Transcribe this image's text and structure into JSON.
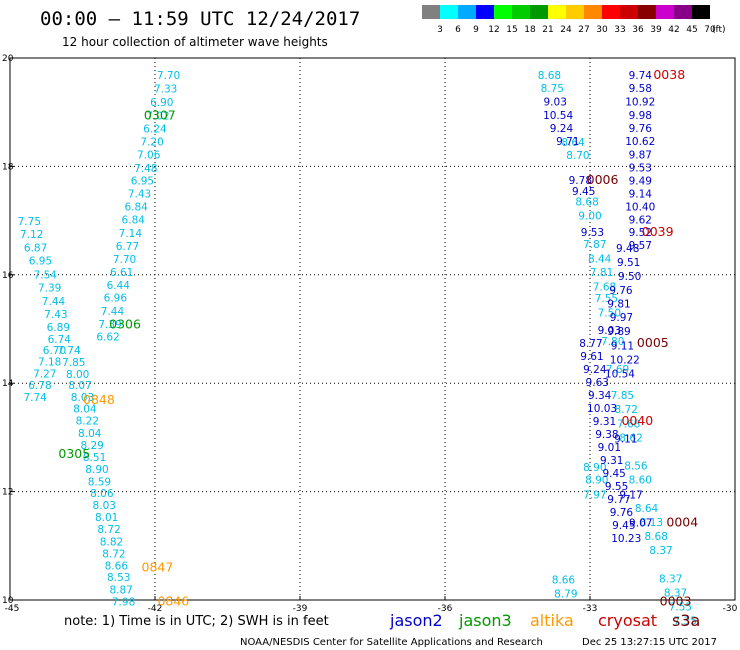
{
  "title": "00:00 – 11:59 UTC 12/24/2017",
  "subtitle": "12 hour collection of altimeter wave heights",
  "note": "note:  1) Time is in UTC;  2) SWH is in feet",
  "credit": "NOAA/NESDIS Center for Satellite Applications and Research",
  "timestamp": "Dec 25 13:27:15 UTC 2017",
  "colorbar": {
    "unit": "(ft)",
    "labels": [
      "3",
      "6",
      "9",
      "12",
      "15",
      "18",
      "21",
      "24",
      "27",
      "30",
      "33",
      "36",
      "39",
      "42",
      "45",
      "70"
    ],
    "colors": [
      "#808080",
      "#00ffff",
      "#00aaff",
      "#0000ff",
      "#00ff00",
      "#00cc00",
      "#009900",
      "#ffff00",
      "#ffcc00",
      "#ff8800",
      "#ff0000",
      "#cc0000",
      "#880000",
      "#cc00cc",
      "#880088",
      "#000000"
    ]
  },
  "satellites": [
    {
      "name": "jason2",
      "color": "#0000cc"
    },
    {
      "name": "jason3",
      "color": "#009900"
    },
    {
      "name": "altika",
      "color": "#ff9900"
    },
    {
      "name": "cryosat",
      "color": "#cc0000"
    },
    {
      "name": "s3a",
      "color": "#770000"
    }
  ],
  "chart_data": {
    "type": "scatter",
    "xlim": [
      -45,
      -30
    ],
    "ylim": [
      10,
      20
    ],
    "x_ticks": [
      "-45",
      "-42",
      "-39",
      "-36",
      "-33",
      "-30"
    ],
    "y_ticks": [
      "10",
      "12",
      "14",
      "16",
      "18",
      "20"
    ],
    "grid": true,
    "groups": [
      {
        "color": "#00bfe6",
        "points": [
          [
            -41.72,
            19.69,
            "7.70"
          ],
          [
            -41.78,
            19.44,
            "7.33"
          ],
          [
            -41.86,
            19.19,
            "6.90"
          ],
          [
            -41.94,
            18.94,
            "7.02"
          ],
          [
            -42.0,
            18.7,
            "6.24"
          ],
          [
            -42.06,
            18.46,
            "7.20"
          ],
          [
            -42.13,
            18.22,
            "7.06"
          ],
          [
            -42.19,
            17.97,
            "7.48"
          ],
          [
            -42.26,
            17.74,
            "6.95"
          ],
          [
            -42.32,
            17.5,
            "7.43"
          ],
          [
            -42.39,
            17.26,
            "6.84"
          ],
          [
            -42.45,
            17.02,
            "6.84"
          ],
          [
            -42.51,
            16.77,
            "7.14"
          ],
          [
            -42.57,
            16.53,
            "6.77"
          ],
          [
            -42.63,
            16.29,
            "7.70"
          ],
          [
            -42.69,
            16.05,
            "6.61"
          ],
          [
            -42.76,
            15.81,
            "6.44"
          ],
          [
            -42.82,
            15.58,
            "6.96"
          ],
          [
            -42.88,
            15.33,
            "7.44"
          ],
          [
            -42.93,
            15.09,
            "7.39"
          ],
          [
            -42.97,
            14.86,
            "6.62"
          ]
        ]
      },
      {
        "color": "#00bfe6",
        "points": [
          [
            -44.6,
            16.99,
            "7.75"
          ],
          [
            -44.55,
            16.75,
            "7.12"
          ],
          [
            -44.47,
            16.5,
            "6.87"
          ],
          [
            -44.37,
            16.26,
            "6.95"
          ],
          [
            -44.27,
            16.01,
            "7.54"
          ],
          [
            -44.18,
            15.77,
            "7.39"
          ],
          [
            -44.1,
            15.52,
            "7.44"
          ],
          [
            -44.05,
            15.28,
            "7.43"
          ],
          [
            -44.0,
            15.04,
            "6.89"
          ],
          [
            -43.98,
            14.82,
            "6.74"
          ],
          [
            -44.08,
            14.61,
            "6.70"
          ],
          [
            -44.18,
            14.4,
            "7.18"
          ],
          [
            -44.28,
            14.18,
            "7.27"
          ],
          [
            -44.38,
            13.97,
            "6.78"
          ],
          [
            -44.48,
            13.75,
            "7.74"
          ],
          [
            -43.78,
            14.61,
            "7.74"
          ],
          [
            -43.68,
            14.39,
            "7.85"
          ],
          [
            -43.6,
            14.17,
            "8.00"
          ]
        ]
      },
      {
        "color": "#00bfe6",
        "points": [
          [
            -43.55,
            13.97,
            "8.07"
          ],
          [
            -43.5,
            13.75,
            "8.03"
          ],
          [
            -43.45,
            13.53,
            "8.04"
          ],
          [
            -43.4,
            13.31,
            "8.22"
          ],
          [
            -43.35,
            13.08,
            "8.04"
          ],
          [
            -43.3,
            12.86,
            "8.29"
          ],
          [
            -43.25,
            12.64,
            "8.51"
          ],
          [
            -43.2,
            12.42,
            "8.90"
          ],
          [
            -43.15,
            12.19,
            "8.59"
          ],
          [
            -43.1,
            11.97,
            "8.06"
          ],
          [
            -43.05,
            11.75,
            "8.03"
          ],
          [
            -43.0,
            11.53,
            "8.01"
          ],
          [
            -42.95,
            11.31,
            "8.72"
          ],
          [
            -42.9,
            11.08,
            "8.82"
          ],
          [
            -42.85,
            10.86,
            "8.72"
          ],
          [
            -42.8,
            10.64,
            "8.66"
          ],
          [
            -42.75,
            10.42,
            "8.53"
          ],
          [
            -42.7,
            10.19,
            "8.87"
          ],
          [
            -42.65,
            9.97,
            "7.98"
          ]
        ]
      },
      {
        "color": "#00bfe6",
        "points": [
          [
            -33.84,
            19.69,
            "8.68"
          ],
          [
            -33.78,
            19.45,
            "8.75"
          ],
          [
            -33.06,
            17.35,
            "8.68"
          ],
          [
            -33.0,
            17.09,
            "9.00"
          ],
          [
            -32.9,
            16.57,
            "7.87"
          ],
          [
            -32.8,
            16.3,
            "8.44"
          ],
          [
            -32.76,
            16.05,
            "7.81"
          ],
          [
            -32.7,
            15.78,
            "7.68"
          ],
          [
            -32.66,
            15.57,
            "7.55"
          ],
          [
            -32.6,
            15.3,
            "7.50"
          ],
          [
            -32.53,
            14.78,
            "7.80"
          ],
          [
            -32.43,
            14.26,
            "7.69"
          ],
          [
            -32.33,
            13.78,
            "7.85"
          ],
          [
            -32.25,
            13.52,
            "8.72"
          ],
          [
            -32.2,
            13.26,
            "7.68"
          ],
          [
            -32.15,
            13.0,
            "8.62"
          ],
          [
            -32.05,
            12.48,
            "8.56"
          ],
          [
            -31.96,
            12.22,
            "8.60"
          ],
          [
            -31.83,
            11.7,
            "8.64"
          ],
          [
            -31.73,
            11.44,
            "8.13"
          ],
          [
            -31.63,
            11.18,
            "8.68"
          ],
          [
            -31.53,
            10.92,
            "8.37"
          ],
          [
            -31.33,
            10.4,
            "8.37"
          ],
          [
            -31.23,
            10.14,
            "8.37"
          ],
          [
            -31.13,
            9.88,
            "7.55"
          ],
          [
            -31.03,
            9.62,
            "7.35"
          ],
          [
            -33.35,
            18.45,
            "8.64"
          ],
          [
            -33.25,
            18.21,
            "8.70"
          ],
          [
            -33.55,
            10.38,
            "8.66"
          ],
          [
            -33.5,
            10.12,
            "8.79"
          ],
          [
            -32.9,
            11.95,
            "7.97"
          ],
          [
            -32.86,
            12.22,
            "8.90"
          ],
          [
            -32.9,
            12.45,
            "8.90"
          ]
        ]
      },
      {
        "color": "#0000cc",
        "points": [
          [
            -33.72,
            19.2,
            "9.03"
          ],
          [
            -33.66,
            18.95,
            "10.54"
          ],
          [
            -33.59,
            18.71,
            "9.24"
          ],
          [
            -33.46,
            18.47,
            "9.71"
          ],
          [
            -33.2,
            17.75,
            "9.78"
          ],
          [
            -33.13,
            17.55,
            "9.45"
          ],
          [
            -32.95,
            16.79,
            "9.53"
          ],
          [
            -32.22,
            16.49,
            "9.48"
          ],
          [
            -32.2,
            16.24,
            "9.51"
          ],
          [
            -32.18,
            15.98,
            "9.50"
          ],
          [
            -32.36,
            15.72,
            "9.76"
          ],
          [
            -32.4,
            15.47,
            "9.81"
          ],
          [
            -32.35,
            15.22,
            "9.97"
          ],
          [
            -32.4,
            14.96,
            "9.89"
          ],
          [
            -32.33,
            14.7,
            "9.11"
          ],
          [
            -32.28,
            14.44,
            "10.22"
          ],
          [
            -32.38,
            14.18,
            "10.54"
          ],
          [
            -32.98,
            14.74,
            "8.77"
          ],
          [
            -32.96,
            14.5,
            "9.61"
          ],
          [
            -32.9,
            14.26,
            "9.24"
          ],
          [
            -32.85,
            14.02,
            "9.63"
          ],
          [
            -32.8,
            13.78,
            "9.34"
          ],
          [
            -32.75,
            13.54,
            "10.03"
          ],
          [
            -32.7,
            13.3,
            "9.31"
          ],
          [
            -32.65,
            13.06,
            "9.38"
          ],
          [
            -32.6,
            12.82,
            "9.01"
          ],
          [
            -32.55,
            12.58,
            "9.31"
          ],
          [
            -32.5,
            12.34,
            "9.45"
          ],
          [
            -32.45,
            12.1,
            "9.55"
          ],
          [
            -32.4,
            11.86,
            "9.77"
          ],
          [
            -32.35,
            11.62,
            "9.76"
          ],
          [
            -32.3,
            11.38,
            "9.45"
          ],
          [
            -32.25,
            11.14,
            "10.23"
          ],
          [
            -32.6,
            14.98,
            "9.03"
          ],
          [
            -31.96,
            19.69,
            "9.74"
          ],
          [
            -31.96,
            19.45,
            "9.58"
          ],
          [
            -31.96,
            19.2,
            "10.92"
          ],
          [
            -31.96,
            18.95,
            "9.98"
          ],
          [
            -31.96,
            18.71,
            "9.76"
          ],
          [
            -31.96,
            18.47,
            "10.62"
          ],
          [
            -31.96,
            18.22,
            "9.87"
          ],
          [
            -31.96,
            17.98,
            "9.53"
          ],
          [
            -31.96,
            17.74,
            "9.49"
          ],
          [
            -31.96,
            17.5,
            "9.14"
          ],
          [
            -31.96,
            17.26,
            "10.40"
          ],
          [
            -31.96,
            17.02,
            "9.62"
          ],
          [
            -31.96,
            16.79,
            "9.52"
          ],
          [
            -31.96,
            16.55,
            "9.57"
          ],
          [
            -32.26,
            12.98,
            "9.11"
          ],
          [
            -32.15,
            11.95,
            "9.17"
          ],
          [
            -31.95,
            11.43,
            "9.07"
          ]
        ]
      },
      {
        "color": "#009900",
        "points": [
          [
            -41.9,
            18.94,
            "0307"
          ],
          [
            -42.62,
            15.08,
            "0306"
          ],
          [
            -43.67,
            12.69,
            "0305"
          ]
        ]
      },
      {
        "color": "#ff9900",
        "points": [
          [
            -43.16,
            13.69,
            "0848"
          ],
          [
            -41.95,
            10.6,
            "0847"
          ],
          [
            -41.62,
            9.97,
            "0846"
          ]
        ]
      },
      {
        "color": "#cc0000",
        "points": [
          [
            -31.36,
            19.69,
            "0038"
          ],
          [
            -31.6,
            16.79,
            "0039"
          ],
          [
            -32.02,
            13.3,
            "0040"
          ]
        ]
      },
      {
        "color": "#770000",
        "points": [
          [
            -32.74,
            17.75,
            "0006"
          ],
          [
            -31.7,
            14.74,
            "0005"
          ],
          [
            -31.09,
            11.43,
            "0004"
          ],
          [
            -31.23,
            9.97,
            "0003"
          ]
        ]
      }
    ]
  }
}
